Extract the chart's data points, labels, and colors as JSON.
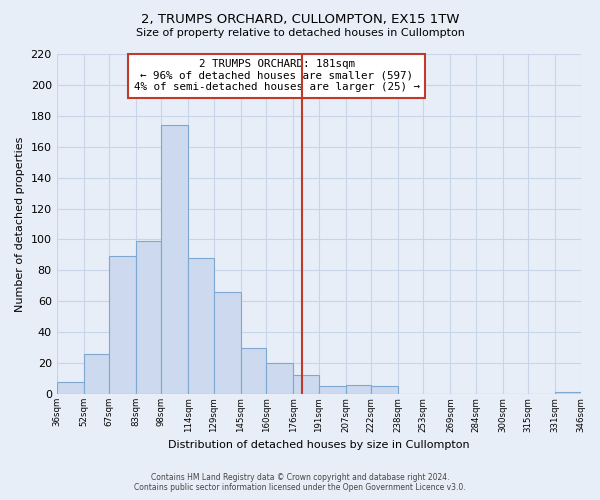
{
  "title": "2, TRUMPS ORCHARD, CULLOMPTON, EX15 1TW",
  "subtitle": "Size of property relative to detached houses in Cullompton",
  "xlabel": "Distribution of detached houses by size in Cullompton",
  "ylabel": "Number of detached properties",
  "bar_edges": [
    36,
    52,
    67,
    83,
    98,
    114,
    129,
    145,
    160,
    176,
    191,
    207,
    222,
    238,
    253,
    269,
    284,
    300,
    315,
    331,
    346
  ],
  "bar_heights": [
    8,
    26,
    89,
    99,
    174,
    88,
    66,
    30,
    20,
    12,
    5,
    6,
    5,
    0,
    0,
    0,
    0,
    0,
    0,
    1
  ],
  "bar_color": "#ccd9ee",
  "bar_edge_color": "#7fa8d1",
  "vline_x": 181,
  "vline_color": "#c0392b",
  "ylim": [
    0,
    220
  ],
  "ann_line1": "2 TRUMPS ORCHARD: 181sqm",
  "ann_line2": "← 96% of detached houses are smaller (597)",
  "ann_line3": "4% of semi-detached houses are larger (25) →",
  "footer_line1": "Contains HM Land Registry data © Crown copyright and database right 2024.",
  "footer_line2": "Contains public sector information licensed under the Open Government Licence v3.0.",
  "tick_labels": [
    "36sqm",
    "52sqm",
    "67sqm",
    "83sqm",
    "98sqm",
    "114sqm",
    "129sqm",
    "145sqm",
    "160sqm",
    "176sqm",
    "191sqm",
    "207sqm",
    "222sqm",
    "238sqm",
    "253sqm",
    "269sqm",
    "284sqm",
    "300sqm",
    "315sqm",
    "331sqm",
    "346sqm"
  ],
  "background_color": "#e8eef8",
  "grid_color": "#c8d4e8"
}
